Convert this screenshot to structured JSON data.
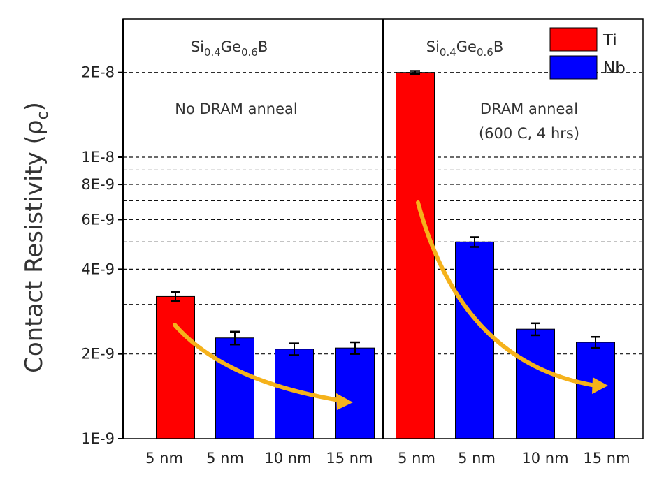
{
  "chart_data": {
    "type": "bar",
    "yscale": "log",
    "ylim": [
      1e-09,
      3.1e-08
    ],
    "ylabel": {
      "text": "Contact Resistivity (",
      "symbol": "ρ",
      "sub": "c",
      "close": ")"
    },
    "yticks": [
      {
        "value": 1e-09,
        "label": "1E-9"
      },
      {
        "value": 2e-09,
        "label": "2E-9"
      },
      {
        "value": 4e-09,
        "label": "4E-9"
      },
      {
        "value": 6e-09,
        "label": "6E-9"
      },
      {
        "value": 8e-09,
        "label": "8E-9"
      },
      {
        "value": 1e-08,
        "label": "1E-8"
      },
      {
        "value": 2e-08,
        "label": "2E-8"
      }
    ],
    "gridlines": [
      2e-09,
      3e-09,
      4e-09,
      5e-09,
      6e-09,
      7e-09,
      8e-09,
      9e-09,
      1e-08,
      2e-08
    ],
    "panels": [
      {
        "title": {
          "base1": "Si",
          "sub1": "0.4",
          "base2": "Ge",
          "sub2": "0.6",
          "base3": "B"
        },
        "note": [
          "No DRAM anneal"
        ],
        "bars": [
          {
            "label": "5 nm",
            "series": "Ti",
            "value": 3.2e-09,
            "error": 1.2e-10
          },
          {
            "label": "5 nm",
            "series": "Nb",
            "value": 2.28e-09,
            "error": 1.2e-10
          },
          {
            "label": "10 nm",
            "series": "Nb",
            "value": 2.08e-09,
            "error": 1e-10
          },
          {
            "label": "15 nm",
            "series": "Nb",
            "value": 2.1e-09,
            "error": 1e-10
          }
        ]
      },
      {
        "title": {
          "base1": "Si",
          "sub1": "0.4",
          "base2": "Ge",
          "sub2": "0.6",
          "base3": "B"
        },
        "note": [
          "DRAM anneal",
          "(600 C, 4 hrs)"
        ],
        "bars": [
          {
            "label": "5 nm",
            "series": "Ti",
            "value": 2e-08,
            "error": 2.5e-10
          },
          {
            "label": "5 nm",
            "series": "Nb",
            "value": 5e-09,
            "error": 2e-10
          },
          {
            "label": "10 nm",
            "series": "Nb",
            "value": 2.45e-09,
            "error": 1.2e-10
          },
          {
            "label": "15 nm",
            "series": "Nb",
            "value": 2.2e-09,
            "error": 1e-10
          }
        ]
      }
    ],
    "legend": [
      {
        "name": "Ti",
        "color": "#ff0000"
      },
      {
        "name": "Nb",
        "color": "#0000ff"
      }
    ],
    "trend_arrow_color": "#f5b21b"
  }
}
